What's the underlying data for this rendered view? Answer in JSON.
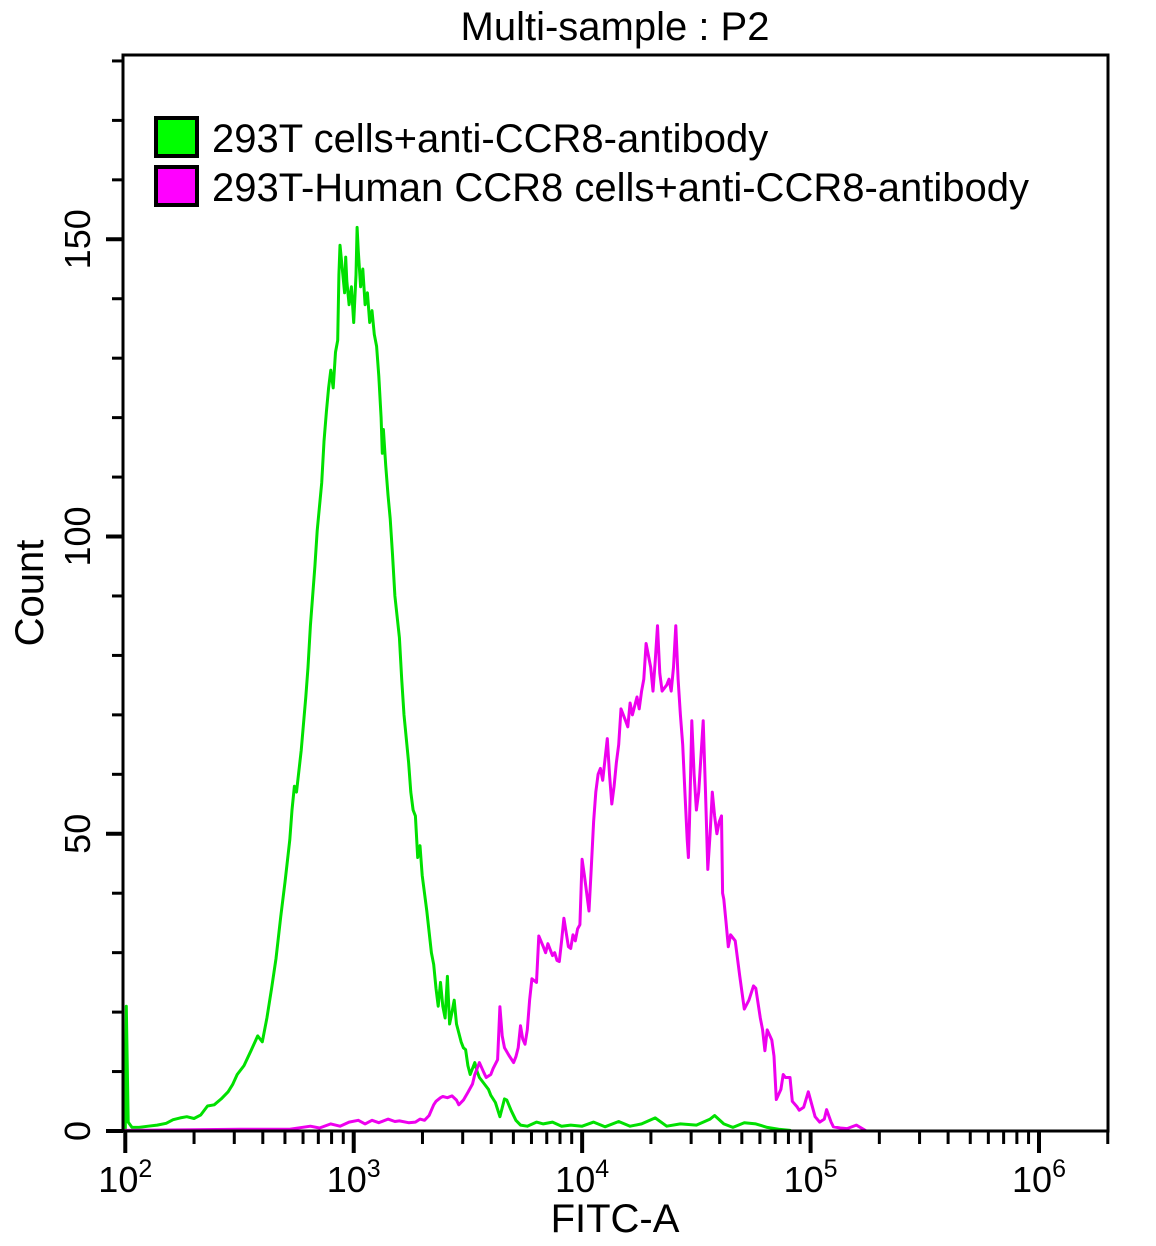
{
  "chart_data": {
    "type": "line",
    "subtype": "flow-cytometry-overlay-histogram",
    "title": "Multi-sample : P2",
    "xlabel": "FITC-A",
    "ylabel": "Count",
    "x_scale": "log10",
    "x_ticks": [
      100,
      1000,
      10000,
      100000,
      1000000
    ],
    "x_tick_exponents": [
      2,
      3,
      4,
      5,
      6
    ],
    "xlim_log10": [
      1.99,
      6.302
    ],
    "y_ticks": [
      0,
      50,
      100,
      150
    ],
    "y_minor_tick_step": 10,
    "ylim": [
      0,
      181
    ],
    "grid": false,
    "legend_position": "top-left-inside",
    "colors": {
      "green": "#00FF00",
      "magenta": "#FF00FF",
      "curve_green": "#00E000",
      "curve_magenta": "#EE00EE",
      "axis": "#000000"
    },
    "series": [
      {
        "name": "293T cells+anti-CCR8-antibody",
        "color_key": "curve_green",
        "points": [
          [
            100,
            0.2
          ],
          [
            101,
            21
          ],
          [
            103,
            1.5
          ],
          [
            107,
            0.6
          ],
          [
            115,
            0.6
          ],
          [
            126,
            0.8
          ],
          [
            138,
            1
          ],
          [
            151,
            1.3
          ],
          [
            162,
            1.9
          ],
          [
            174,
            2.2
          ],
          [
            186,
            2.4
          ],
          [
            200,
            2.1
          ],
          [
            214,
            2.7
          ],
          [
            229,
            4.2
          ],
          [
            245,
            4.4
          ],
          [
            263,
            5.4
          ],
          [
            282,
            6.6
          ],
          [
            295,
            7.8
          ],
          [
            309,
            9.5
          ],
          [
            331,
            11
          ],
          [
            355,
            13.5
          ],
          [
            380,
            16
          ],
          [
            398,
            15
          ],
          [
            417,
            19
          ],
          [
            437,
            24
          ],
          [
            457,
            29
          ],
          [
            479,
            36
          ],
          [
            501,
            42
          ],
          [
            525,
            49
          ],
          [
            537,
            54
          ],
          [
            550,
            58
          ],
          [
            562,
            57
          ],
          [
            589,
            64
          ],
          [
            617,
            73
          ],
          [
            631,
            78
          ],
          [
            646,
            85
          ],
          [
            676,
            95
          ],
          [
            692,
            101
          ],
          [
            724,
            109
          ],
          [
            741,
            116
          ],
          [
            759,
            121
          ],
          [
            776,
            125
          ],
          [
            794,
            128
          ],
          [
            813,
            125
          ],
          [
            832,
            131
          ],
          [
            851,
            133
          ],
          [
            861,
            144
          ],
          [
            871,
            149
          ],
          [
            891,
            145
          ],
          [
            912,
            141
          ],
          [
            922,
            147
          ],
          [
            933,
            143
          ],
          [
            955,
            139
          ],
          [
            977,
            142
          ],
          [
            1000,
            136
          ],
          [
            1023,
            144
          ],
          [
            1035,
            152
          ],
          [
            1047,
            148
          ],
          [
            1072,
            142
          ],
          [
            1096,
            145
          ],
          [
            1122,
            139
          ],
          [
            1148,
            141
          ],
          [
            1175,
            136
          ],
          [
            1202,
            138
          ],
          [
            1230,
            134
          ],
          [
            1259,
            132
          ],
          [
            1288,
            127
          ],
          [
            1318,
            120
          ],
          [
            1334,
            114
          ],
          [
            1349,
            118
          ],
          [
            1380,
            112
          ],
          [
            1413,
            107
          ],
          [
            1445,
            103
          ],
          [
            1479,
            97
          ],
          [
            1514,
            90
          ],
          [
            1585,
            83
          ],
          [
            1622,
            76
          ],
          [
            1660,
            70
          ],
          [
            1738,
            62
          ],
          [
            1778,
            57
          ],
          [
            1820,
            54
          ],
          [
            1862,
            53
          ],
          [
            1905,
            46
          ],
          [
            1950,
            48
          ],
          [
            1995,
            43
          ],
          [
            2042,
            40
          ],
          [
            2089,
            37
          ],
          [
            2188,
            30
          ],
          [
            2239,
            28
          ],
          [
            2291,
            24
          ],
          [
            2344,
            21
          ],
          [
            2399,
            25
          ],
          [
            2455,
            21
          ],
          [
            2512,
            19
          ],
          [
            2570,
            26
          ],
          [
            2630,
            18
          ],
          [
            2692,
            20
          ],
          [
            2754,
            22
          ],
          [
            2818,
            18
          ],
          [
            2884,
            16.5
          ],
          [
            2951,
            15
          ],
          [
            3020,
            14
          ],
          [
            3090,
            13.7
          ],
          [
            3162,
            11
          ],
          [
            3236,
            9.5
          ],
          [
            3388,
            11.5
          ],
          [
            3467,
            10
          ],
          [
            3548,
            9
          ],
          [
            3715,
            8
          ],
          [
            3890,
            7
          ],
          [
            3981,
            6
          ],
          [
            4169,
            4.8
          ],
          [
            4365,
            2.4
          ],
          [
            4571,
            5.4
          ],
          [
            4677,
            5.2
          ],
          [
            4898,
            3.4
          ],
          [
            5129,
            1.8
          ],
          [
            5370,
            1
          ],
          [
            5754,
            0.8
          ],
          [
            6310,
            1.5
          ],
          [
            6761,
            1.2
          ],
          [
            7413,
            1.5
          ],
          [
            8128,
            0.8
          ],
          [
            8913,
            1
          ],
          [
            10000,
            0.8
          ],
          [
            11220,
            1.5
          ],
          [
            12590,
            0.7
          ],
          [
            14450,
            1.6
          ],
          [
            16220,
            0.8
          ],
          [
            18200,
            1.2
          ],
          [
            20890,
            2.2
          ],
          [
            23440,
            0.8
          ],
          [
            26920,
            1.2
          ],
          [
            31620,
            1
          ],
          [
            36310,
            2
          ],
          [
            38020,
            2.6
          ],
          [
            41690,
            1.2
          ],
          [
            45710,
            0.6
          ],
          [
            51290,
            1.4
          ],
          [
            57540,
            1.2
          ],
          [
            64570,
            0.6
          ],
          [
            72440,
            0.3
          ],
          [
            81280,
            0.1
          ]
        ]
      },
      {
        "name": "293T-Human CCR8 cells+anti-CCR8-antibody",
        "color_key": "curve_magenta",
        "points": [
          [
            100,
            0.1
          ],
          [
            200,
            0.2
          ],
          [
            316,
            0.3
          ],
          [
            447,
            0.3
          ],
          [
            525,
            0.3
          ],
          [
            646,
            0.8
          ],
          [
            708,
            0.5
          ],
          [
            794,
            1.2
          ],
          [
            871,
            0.8
          ],
          [
            955,
            1.5
          ],
          [
            1047,
            1.8
          ],
          [
            1122,
            1.2
          ],
          [
            1202,
            1.8
          ],
          [
            1288,
            1.4
          ],
          [
            1413,
            2
          ],
          [
            1514,
            1.6
          ],
          [
            1585,
            1.7
          ],
          [
            1738,
            1.4
          ],
          [
            1862,
            1.5
          ],
          [
            1950,
            2
          ],
          [
            2042,
            1.8
          ],
          [
            2138,
            2.6
          ],
          [
            2239,
            4.4
          ],
          [
            2291,
            5
          ],
          [
            2399,
            5.6
          ],
          [
            2455,
            5.8
          ],
          [
            2570,
            5.6
          ],
          [
            2692,
            5.9
          ],
          [
            2818,
            5.2
          ],
          [
            2884,
            4.4
          ],
          [
            3020,
            5.2
          ],
          [
            3162,
            6.5
          ],
          [
            3311,
            7.9
          ],
          [
            3388,
            9.5
          ],
          [
            3548,
            11.5
          ],
          [
            3715,
            9.8
          ],
          [
            3802,
            9
          ],
          [
            3981,
            9.5
          ],
          [
            4074,
            10.5
          ],
          [
            4266,
            12
          ],
          [
            4365,
            20.9
          ],
          [
            4467,
            16
          ],
          [
            4571,
            14
          ],
          [
            4786,
            12.7
          ],
          [
            5012,
            11.5
          ],
          [
            5129,
            12.5
          ],
          [
            5248,
            14
          ],
          [
            5370,
            17.7
          ],
          [
            5495,
            15.5
          ],
          [
            5623,
            14.6
          ],
          [
            5754,
            17
          ],
          [
            5888,
            22
          ],
          [
            6026,
            25.6
          ],
          [
            6310,
            25
          ],
          [
            6457,
            32.8
          ],
          [
            6761,
            31
          ],
          [
            6918,
            30
          ],
          [
            7079,
            31.5
          ],
          [
            7413,
            29.5
          ],
          [
            7586,
            30
          ],
          [
            7762,
            28.7
          ],
          [
            7943,
            28.5
          ],
          [
            8128,
            32
          ],
          [
            8318,
            35.8
          ],
          [
            8710,
            31
          ],
          [
            8913,
            30.7
          ],
          [
            9120,
            33
          ],
          [
            9333,
            32
          ],
          [
            9550,
            34
          ],
          [
            9772,
            34.7
          ],
          [
            10000,
            45.7
          ],
          [
            10230,
            43
          ],
          [
            10720,
            37
          ],
          [
            10960,
            44
          ],
          [
            11220,
            52
          ],
          [
            11480,
            57
          ],
          [
            11750,
            60
          ],
          [
            12020,
            61
          ],
          [
            12300,
            59
          ],
          [
            12880,
            66
          ],
          [
            13180,
            60
          ],
          [
            13490,
            55
          ],
          [
            13800,
            58
          ],
          [
            14130,
            62
          ],
          [
            14450,
            65
          ],
          [
            14790,
            71
          ],
          [
            15490,
            69
          ],
          [
            15850,
            68
          ],
          [
            16220,
            72
          ],
          [
            16600,
            70
          ],
          [
            17380,
            73
          ],
          [
            17780,
            71
          ],
          [
            18200,
            74
          ],
          [
            18620,
            76
          ],
          [
            19050,
            82
          ],
          [
            19950,
            78
          ],
          [
            20420,
            74
          ],
          [
            20890,
            79
          ],
          [
            21380,
            85
          ],
          [
            21880,
            77
          ],
          [
            22390,
            74
          ],
          [
            23440,
            75
          ],
          [
            23990,
            76
          ],
          [
            24550,
            74
          ],
          [
            25120,
            78
          ],
          [
            25700,
            85
          ],
          [
            26300,
            76
          ],
          [
            26920,
            70
          ],
          [
            27540,
            65
          ],
          [
            28180,
            57
          ],
          [
            28840,
            49
          ],
          [
            29170,
            46
          ],
          [
            29510,
            52
          ],
          [
            30200,
            69
          ],
          [
            30900,
            60
          ],
          [
            31620,
            54
          ],
          [
            32360,
            57
          ],
          [
            33880,
            69
          ],
          [
            34670,
            57
          ],
          [
            35480,
            44
          ],
          [
            36310,
            50
          ],
          [
            37150,
            57
          ],
          [
            38020,
            53
          ],
          [
            38900,
            50
          ],
          [
            39810,
            52
          ],
          [
            40740,
            53
          ],
          [
            41210,
            40
          ],
          [
            41690,
            39
          ],
          [
            42660,
            35
          ],
          [
            43650,
            31
          ],
          [
            44670,
            33
          ],
          [
            46770,
            32
          ],
          [
            48980,
            26
          ],
          [
            51290,
            20.5
          ],
          [
            53700,
            22
          ],
          [
            56230,
            24.4
          ],
          [
            57540,
            24
          ],
          [
            60260,
            19
          ],
          [
            61660,
            17
          ],
          [
            63100,
            13.5
          ],
          [
            64570,
            17
          ],
          [
            67610,
            15.3
          ],
          [
            69180,
            12.6
          ],
          [
            70790,
            5.3
          ],
          [
            74130,
            7
          ],
          [
            75860,
            9.5
          ],
          [
            77620,
            9
          ],
          [
            81280,
            9
          ],
          [
            83180,
            5
          ],
          [
            87100,
            4.1
          ],
          [
            89130,
            3.5
          ],
          [
            93330,
            4
          ],
          [
            97720,
            6.6
          ],
          [
            104700,
            2.4
          ],
          [
            109600,
            1.5
          ],
          [
            114800,
            2
          ],
          [
            117500,
            3.6
          ],
          [
            123000,
            1.5
          ],
          [
            125900,
            0.7
          ],
          [
            134900,
            0.5
          ],
          [
            144500,
            0.4
          ],
          [
            158500,
            1
          ],
          [
            173800,
            0.1
          ]
        ]
      }
    ]
  }
}
